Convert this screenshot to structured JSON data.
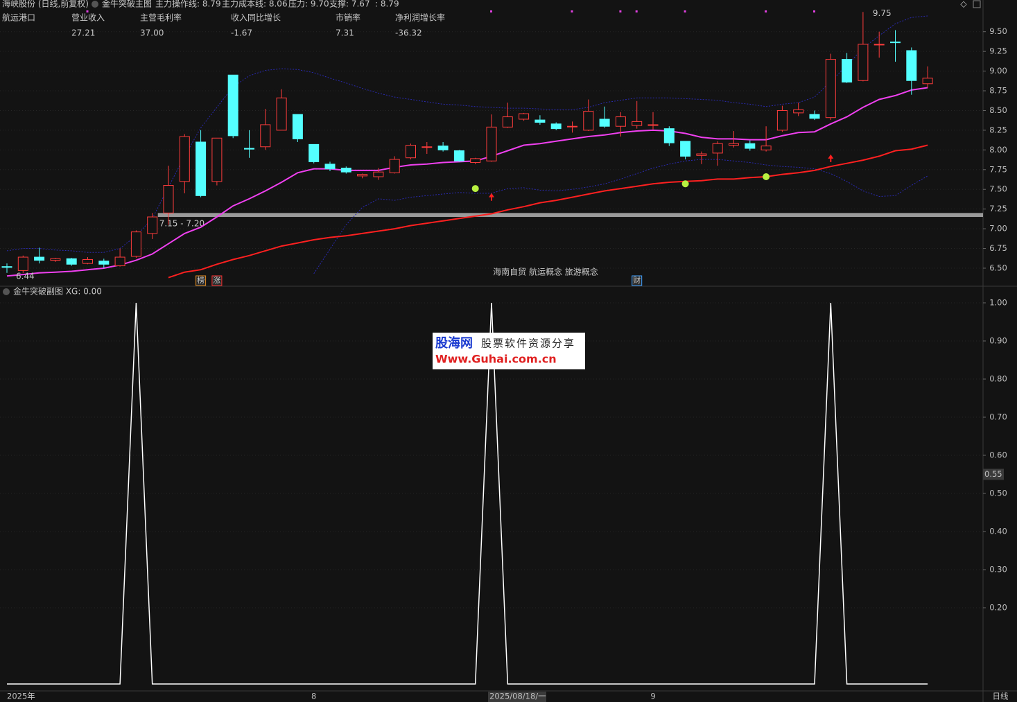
{
  "header": {
    "stock": "海峡股份 (日线,前复权)",
    "items": [
      {
        "text": "主力操作线: 8.79",
        "color": "#c8c8c8"
      },
      {
        "text": "主力成本线: 8.06",
        "color": "#ff2a2a"
      },
      {
        "text": "压力: 9.70",
        "color": "#2a3cff"
      },
      {
        "text": "支撑: 7.67",
        "color": "#2a3cff"
      },
      {
        "text": ": 8.79",
        "color": "#e040e0"
      }
    ]
  },
  "fundamentals": {
    "sector": "航运港口",
    "items": [
      {
        "label": "营业收入",
        "value": "27.21",
        "color": "#ff3030"
      },
      {
        "label": "主营毛利率",
        "value": "37.00",
        "color": "#e040e0"
      },
      {
        "label": "收入同比增长",
        "value": "-1.67",
        "color": "#40e0ff"
      },
      {
        "label": "市销率",
        "value": "7.31",
        "color": "#30e030"
      },
      {
        "label": "净利润增长率",
        "value": "-36.32",
        "color": "#ff3030"
      }
    ]
  },
  "watermark": {
    "brand": "股海网",
    "slogan": "股票软件资源分享",
    "url": "Www.Guhai.com.cn"
  },
  "period": "日线",
  "chart_data": [
    {
      "type": "candlestick",
      "title": "金牛突破主图",
      "categories": [
        "2025年",
        null,
        null,
        null,
        null,
        null,
        null,
        null,
        null,
        null,
        null,
        null,
        null,
        null,
        null,
        null,
        null,
        null,
        null,
        "8",
        null,
        null,
        null,
        null,
        null,
        null,
        null,
        null,
        null,
        null,
        null,
        null,
        null,
        null,
        null,
        null,
        null,
        null,
        null,
        null,
        "9",
        null,
        null,
        null,
        null,
        null,
        null,
        null,
        null,
        null,
        null,
        null,
        null,
        null,
        null,
        null,
        null,
        null
      ],
      "open": [
        6.52,
        6.47,
        6.64,
        6.6,
        6.62,
        6.56,
        6.59,
        6.53,
        6.65,
        6.94,
        7.2,
        7.6,
        8.1,
        7.6,
        8.95,
        8.02,
        8.04,
        8.25,
        8.45,
        8.07,
        7.82,
        7.77,
        7.67,
        7.66,
        7.71,
        7.9,
        8.04,
        8.05,
        7.99,
        7.84,
        7.86,
        8.29,
        8.39,
        8.38,
        8.33,
        8.3,
        8.25,
        8.39,
        8.3,
        8.31,
        8.31,
        8.27,
        8.11,
        7.93,
        7.96,
        8.06,
        8.08,
        8.0,
        8.25,
        8.47,
        8.45,
        8.41,
        9.15,
        8.88,
        9.34,
        9.37,
        9.26,
        8.84
      ],
      "high": [
        6.56,
        6.66,
        6.76,
        6.63,
        6.63,
        6.64,
        6.62,
        6.75,
        6.98,
        7.2,
        7.8,
        8.2,
        8.25,
        8.15,
        8.95,
        8.25,
        8.52,
        8.77,
        8.45,
        8.07,
        7.85,
        7.79,
        7.7,
        7.77,
        7.92,
        8.08,
        8.1,
        8.1,
        8.0,
        7.9,
        8.45,
        8.6,
        8.47,
        8.44,
        8.35,
        8.36,
        8.64,
        8.55,
        8.48,
        8.62,
        8.48,
        8.3,
        8.11,
        7.98,
        8.11,
        8.24,
        8.12,
        8.3,
        8.56,
        8.6,
        8.5,
        9.22,
        9.23,
        9.75,
        9.5,
        9.52,
        9.3,
        9.06
      ],
      "low": [
        6.44,
        6.44,
        6.56,
        6.58,
        6.53,
        6.55,
        6.5,
        6.52,
        6.63,
        6.87,
        7.05,
        7.45,
        7.4,
        7.55,
        8.15,
        7.9,
        8.0,
        8.25,
        8.1,
        7.83,
        7.73,
        7.7,
        7.64,
        7.62,
        7.7,
        7.88,
        7.95,
        7.98,
        7.85,
        7.82,
        7.85,
        8.28,
        8.37,
        8.32,
        8.25,
        8.22,
        8.24,
        8.28,
        8.17,
        8.27,
        8.26,
        8.05,
        7.88,
        7.82,
        7.8,
        8.03,
        7.99,
        7.98,
        8.23,
        8.43,
        8.38,
        8.38,
        8.85,
        8.87,
        9.17,
        9.12,
        8.7,
        8.79
      ],
      "close": [
        6.51,
        6.64,
        6.6,
        6.62,
        6.55,
        6.61,
        6.55,
        6.64,
        6.96,
        7.15,
        7.55,
        8.17,
        7.42,
        8.15,
        8.18,
        8.01,
        8.32,
        8.66,
        8.14,
        7.85,
        7.76,
        7.72,
        7.69,
        7.72,
        7.88,
        8.06,
        8.04,
        8.0,
        7.86,
        7.89,
        8.29,
        8.42,
        8.46,
        8.35,
        8.27,
        8.3,
        8.49,
        8.3,
        8.42,
        8.36,
        8.32,
        8.09,
        7.92,
        7.95,
        8.08,
        8.08,
        8.02,
        8.05,
        8.5,
        8.51,
        8.4,
        9.15,
        8.86,
        9.34,
        9.34,
        9.36,
        8.88,
        8.91
      ],
      "up_color": "#ff3c3c",
      "down_color": "#54ffff",
      "lines": [
        {
          "color": "#2a2ab0",
          "dashed": true,
          "values": [
            6.72,
            6.75,
            6.75,
            6.73,
            6.72,
            6.7,
            6.7,
            6.75,
            6.91,
            7.13,
            7.53,
            7.92,
            8.28,
            8.54,
            8.8,
            8.94,
            9.01,
            9.03,
            9.02,
            8.98,
            8.91,
            8.85,
            8.78,
            8.72,
            8.67,
            8.64,
            8.61,
            8.58,
            8.57,
            8.55,
            8.54,
            8.53,
            8.53,
            8.52,
            8.51,
            8.51,
            8.54,
            8.6,
            8.63,
            8.66,
            8.66,
            8.66,
            8.65,
            8.64,
            8.63,
            8.6,
            8.58,
            8.55,
            8.58,
            8.6,
            8.67,
            8.87,
            9.07,
            9.29,
            9.45,
            9.6,
            9.68,
            9.7
          ]
        },
        {
          "color": "#2a2ab0",
          "dashed": true,
          "values": [
            null,
            null,
            null,
            null,
            null,
            null,
            null,
            null,
            null,
            null,
            null,
            null,
            null,
            null,
            null,
            null,
            null,
            null,
            null,
            6.43,
            6.74,
            7.05,
            7.27,
            7.38,
            7.36,
            7.4,
            7.42,
            7.44,
            7.46,
            7.45,
            7.45,
            7.51,
            7.52,
            7.49,
            7.48,
            7.5,
            7.53,
            7.57,
            7.63,
            7.7,
            7.77,
            7.82,
            7.86,
            7.88,
            7.88,
            7.86,
            7.84,
            7.81,
            7.79,
            7.78,
            7.76,
            7.7,
            7.6,
            7.48,
            7.41,
            7.42,
            7.55,
            7.67
          ]
        },
        {
          "color": "#ff2020",
          "dashed": false,
          "values": [
            null,
            null,
            null,
            null,
            null,
            null,
            null,
            null,
            null,
            null,
            6.38,
            6.45,
            6.48,
            6.55,
            6.61,
            6.66,
            6.72,
            6.78,
            6.82,
            6.86,
            6.89,
            6.91,
            6.94,
            6.97,
            7.0,
            7.04,
            7.07,
            7.1,
            7.13,
            7.16,
            7.19,
            7.24,
            7.28,
            7.33,
            7.36,
            7.4,
            7.44,
            7.48,
            7.51,
            7.54,
            7.57,
            7.59,
            7.6,
            7.61,
            7.63,
            7.63,
            7.65,
            7.66,
            7.69,
            7.71,
            7.74,
            7.79,
            7.83,
            7.87,
            7.92,
            7.99,
            8.01,
            8.06
          ]
        },
        {
          "color": "#f040f0",
          "dashed": false,
          "values": [
            6.4,
            6.42,
            6.44,
            6.45,
            6.46,
            6.48,
            6.5,
            6.54,
            6.6,
            6.68,
            6.81,
            6.94,
            7.02,
            7.15,
            7.29,
            7.38,
            7.48,
            7.59,
            7.71,
            7.76,
            7.76,
            7.74,
            7.74,
            7.74,
            7.78,
            7.81,
            7.82,
            7.84,
            7.85,
            7.86,
            7.92,
            7.99,
            8.06,
            8.08,
            8.11,
            8.14,
            8.17,
            8.19,
            8.22,
            8.24,
            8.25,
            8.24,
            8.21,
            8.16,
            8.14,
            8.14,
            8.13,
            8.13,
            8.18,
            8.22,
            8.23,
            8.33,
            8.42,
            8.54,
            8.64,
            8.69,
            8.76,
            8.79
          ]
        }
      ],
      "ylim": [
        6.28,
        9.77
      ],
      "yticks": [
        {
          "value": 6.5,
          "label": "6.50"
        },
        {
          "value": 6.75,
          "label": "6.75"
        },
        {
          "value": 7,
          "label": "7.00"
        },
        {
          "value": 7.25,
          "label": "7.25"
        },
        {
          "value": 7.5,
          "label": "7.50"
        },
        {
          "value": 7.75,
          "label": "7.75"
        },
        {
          "value": 8,
          "label": "8.00"
        },
        {
          "value": 8.25,
          "label": "8.25"
        },
        {
          "value": 8.5,
          "label": "8.50"
        },
        {
          "value": 8.75,
          "label": "8.75"
        },
        {
          "value": 9,
          "label": "9.00"
        },
        {
          "value": 9.25,
          "label": "9.25"
        },
        {
          "value": 9.5,
          "label": "9.50"
        }
      ],
      "grid": true,
      "zone": {
        "from": 7.15,
        "to": 7.2,
        "label": "7.15 - 7.20",
        "start": 9
      },
      "high_label": {
        "index": 53,
        "value": 9.75
      },
      "low_label": {
        "index": 0,
        "value": 6.44
      },
      "apples": [
        {
          "index": 29,
          "value": 7.51
        },
        {
          "index": 42,
          "value": 7.57
        },
        {
          "index": 47,
          "value": 7.66
        }
      ],
      "arrows": [
        {
          "index": 30,
          "value": 7.4
        },
        {
          "index": 51,
          "value": 7.89
        }
      ],
      "top_dots": [
        5,
        30,
        35,
        38,
        39,
        42,
        47,
        50
      ],
      "tags": [
        {
          "index": 12,
          "text": "榜",
          "color": "#e08a20"
        },
        {
          "index": 13,
          "text": "涨",
          "color": "#ff3030"
        },
        {
          "index": 39,
          "text": "财",
          "color": "#40a0ff"
        }
      ],
      "concepts": "海南自贸 航运概念 旅游概念",
      "cursor": {
        "index": 30,
        "label": "2025/08/18/一"
      }
    },
    {
      "type": "line",
      "title": "金牛突破副图 XG: 0.00",
      "color": "#ffffff",
      "values": [
        0,
        0,
        0,
        0,
        0,
        0,
        0,
        0,
        1,
        0,
        0,
        0,
        0,
        0,
        0,
        0,
        0,
        0,
        0,
        0,
        0,
        0,
        0,
        0,
        0,
        0,
        0,
        0,
        0,
        0,
        1,
        0,
        0,
        0,
        0,
        0,
        0,
        0,
        0,
        0,
        0,
        0,
        0,
        0,
        0,
        0,
        0,
        0,
        0,
        0,
        0,
        1,
        0,
        0,
        0,
        0,
        0,
        0
      ],
      "ylim": [
        0,
        1.04
      ],
      "yticks": [
        {
          "value": 0.2,
          "label": "0.20"
        },
        {
          "value": 0.3,
          "label": "0.30"
        },
        {
          "value": 0.4,
          "label": "0.40"
        },
        {
          "value": 0.5,
          "label": "0.50"
        },
        {
          "value": 0.6,
          "label": "0.60"
        },
        {
          "value": 0.7,
          "label": "0.70"
        },
        {
          "value": 0.8,
          "label": "0.80"
        },
        {
          "value": 0.9,
          "label": "0.90"
        },
        {
          "value": 1,
          "label": "1.00"
        }
      ],
      "grid": true,
      "cursor_value": 0.55
    }
  ]
}
